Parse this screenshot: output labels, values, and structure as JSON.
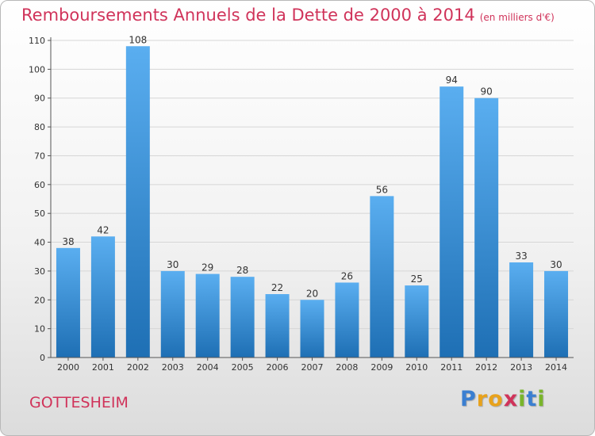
{
  "colors": {
    "title": "#d0335a",
    "bar_top": "#5aaef0",
    "bar_bottom": "#1e6fb4",
    "grid": "#d6d6d6",
    "axis": "#555555"
  },
  "chart_data": {
    "type": "bar",
    "title": "Remboursements Annuels de la Dette de 2000 à 2014",
    "unit_label": "(en milliers d'€)",
    "xlabel": "",
    "ylabel": "",
    "ylim": [
      0,
      110
    ],
    "yticks": [
      0,
      10,
      20,
      30,
      40,
      50,
      60,
      70,
      80,
      90,
      100,
      110
    ],
    "grid": true,
    "categories": [
      "2000",
      "2001",
      "2002",
      "2003",
      "2004",
      "2005",
      "2006",
      "2007",
      "2008",
      "2009",
      "2010",
      "2011",
      "2012",
      "2013",
      "2014"
    ],
    "values": [
      38,
      42,
      108,
      30,
      29,
      28,
      22,
      20,
      26,
      56,
      25,
      94,
      90,
      33,
      30
    ]
  },
  "footer": {
    "city": "GOTTESHEIM",
    "logo_letters": [
      {
        "char": "P",
        "color": "#3b7fd1"
      },
      {
        "char": "r",
        "color": "#e8a21c"
      },
      {
        "char": "o",
        "color": "#e8a21c"
      },
      {
        "char": "x",
        "color": "#d0335a"
      },
      {
        "char": "i",
        "color": "#79b52b"
      },
      {
        "char": "t",
        "color": "#3b7fd1"
      },
      {
        "char": "i",
        "color": "#79b52b"
      }
    ]
  }
}
